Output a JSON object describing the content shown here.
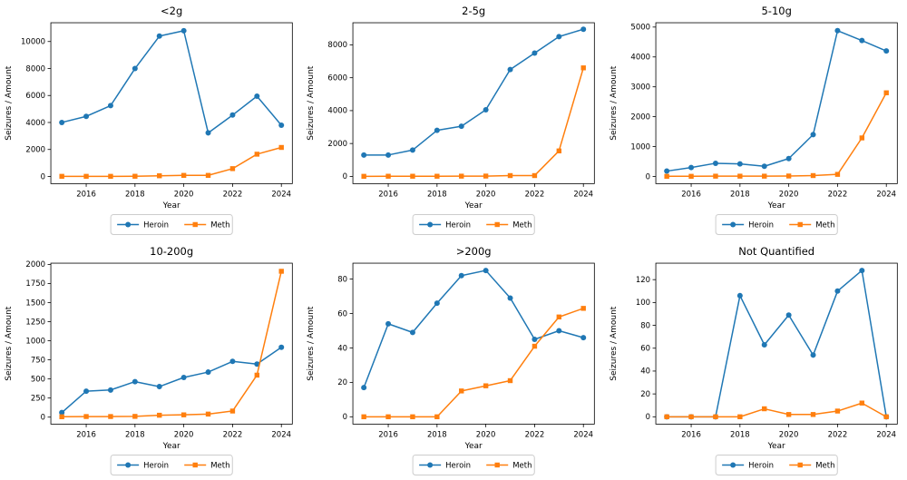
{
  "figure": {
    "background": "#ffffff",
    "heroin_color": "#1f77b4",
    "meth_color": "#ff7f0e",
    "spine_color": "#000000",
    "legend_border_color": "#cccccc"
  },
  "chart_data": [
    {
      "type": "line",
      "title": "<2g",
      "xlabel": "Year",
      "ylabel": "Seizures / Amount",
      "x": [
        2015,
        2016,
        2017,
        2018,
        2019,
        2020,
        2021,
        2022,
        2023,
        2024
      ],
      "xticks": [
        2016,
        2018,
        2020,
        2022,
        2024
      ],
      "yticks": [
        0,
        2000,
        4000,
        6000,
        8000,
        10000
      ],
      "xlim": [
        2014.55,
        2024.45
      ],
      "ylim": [
        -532,
        11392
      ],
      "grid": false,
      "legend": {
        "labels": [
          "Heroin",
          "Meth"
        ],
        "position": "below-center"
      },
      "series": [
        {
          "name": "Heroin",
          "color": "#1f77b4",
          "marker": "circle",
          "values": [
            4000,
            4450,
            5250,
            8000,
            10400,
            10800,
            3230,
            4550,
            5950,
            3800
          ]
        },
        {
          "name": "Meth",
          "color": "#ff7f0e",
          "marker": "square",
          "values": [
            10,
            10,
            10,
            15,
            50,
            80,
            80,
            580,
            1650,
            2150
          ]
        }
      ]
    },
    {
      "type": "line",
      "title": "2-5g",
      "xlabel": "Year",
      "ylabel": "Seizures / Amount",
      "x": [
        2015,
        2016,
        2017,
        2018,
        2019,
        2020,
        2021,
        2022,
        2023,
        2024
      ],
      "xticks": [
        2016,
        2018,
        2020,
        2022,
        2024
      ],
      "yticks": [
        0,
        2000,
        4000,
        6000,
        8000
      ],
      "xlim": [
        2014.55,
        2024.45
      ],
      "ylim": [
        -440,
        9345
      ],
      "grid": false,
      "legend": {
        "labels": [
          "Heroin",
          "Meth"
        ],
        "position": "below-center"
      },
      "series": [
        {
          "name": "Heroin",
          "color": "#1f77b4",
          "marker": "circle",
          "values": [
            1300,
            1300,
            1600,
            2800,
            3050,
            4050,
            6500,
            7500,
            8500,
            8950
          ]
        },
        {
          "name": "Meth",
          "color": "#ff7f0e",
          "marker": "square",
          "values": [
            5,
            10,
            10,
            10,
            15,
            20,
            50,
            50,
            1550,
            6600
          ]
        }
      ]
    },
    {
      "type": "line",
      "title": "5-10g",
      "xlabel": "Year",
      "ylabel": "Seizures / Amount",
      "x": [
        2015,
        2016,
        2017,
        2018,
        2019,
        2020,
        2021,
        2022,
        2023,
        2024
      ],
      "xticks": [
        2016,
        2018,
        2020,
        2022,
        2024
      ],
      "yticks": [
        0,
        1000,
        2000,
        3000,
        4000,
        5000
      ],
      "xlim": [
        2014.55,
        2024.45
      ],
      "ylim": [
        -240,
        5145
      ],
      "grid": false,
      "legend": {
        "labels": [
          "Heroin",
          "Meth"
        ],
        "position": "below-center"
      },
      "series": [
        {
          "name": "Heroin",
          "color": "#1f77b4",
          "marker": "circle",
          "values": [
            180,
            300,
            440,
            420,
            340,
            600,
            1400,
            4880,
            4550,
            4200
          ]
        },
        {
          "name": "Meth",
          "color": "#ff7f0e",
          "marker": "square",
          "values": [
            5,
            5,
            10,
            10,
            10,
            15,
            30,
            70,
            1290,
            2800
          ]
        }
      ]
    },
    {
      "type": "line",
      "title": "10-200g",
      "xlabel": "Year",
      "ylabel": "Seizures / Amount",
      "x": [
        2015,
        2016,
        2017,
        2018,
        2019,
        2020,
        2021,
        2022,
        2023,
        2024
      ],
      "xticks": [
        2016,
        2018,
        2020,
        2022,
        2024
      ],
      "yticks": [
        0,
        250,
        500,
        750,
        1000,
        1250,
        1500,
        1750,
        2000
      ],
      "xlim": [
        2014.55,
        2024.45
      ],
      "ylim": [
        -91,
        2016
      ],
      "grid": false,
      "legend": {
        "labels": [
          "Heroin",
          "Meth"
        ],
        "position": "below-center"
      },
      "series": [
        {
          "name": "Heroin",
          "color": "#1f77b4",
          "marker": "circle",
          "values": [
            60,
            340,
            355,
            465,
            400,
            520,
            590,
            730,
            695,
            915
          ]
        },
        {
          "name": "Meth",
          "color": "#ff7f0e",
          "marker": "square",
          "values": [
            5,
            8,
            8,
            10,
            25,
            30,
            40,
            80,
            550,
            1910
          ]
        }
      ]
    },
    {
      "type": "line",
      "title": ">200g",
      "xlabel": "Year",
      "ylabel": "Seizures / Amount",
      "x": [
        2015,
        2016,
        2017,
        2018,
        2019,
        2020,
        2021,
        2022,
        2023,
        2024
      ],
      "xticks": [
        2016,
        2018,
        2020,
        2022,
        2024
      ],
      "yticks": [
        0,
        20,
        40,
        60,
        80
      ],
      "xlim": [
        2014.55,
        2024.45
      ],
      "ylim": [
        -4.25,
        89.25
      ],
      "grid": false,
      "legend": {
        "labels": [
          "Heroin",
          "Meth"
        ],
        "position": "below-center"
      },
      "series": [
        {
          "name": "Heroin",
          "color": "#1f77b4",
          "marker": "circle",
          "values": [
            17,
            54,
            49,
            66,
            82,
            85,
            69,
            45,
            50,
            46
          ]
        },
        {
          "name": "Meth",
          "color": "#ff7f0e",
          "marker": "square",
          "values": [
            0,
            0,
            0,
            0,
            15,
            18,
            21,
            41,
            58,
            63
          ]
        }
      ]
    },
    {
      "type": "line",
      "title": "Not Quantified",
      "xlabel": "Year",
      "ylabel": "Seizures / Amount",
      "x": [
        2015,
        2016,
        2017,
        2018,
        2019,
        2020,
        2021,
        2022,
        2023,
        2024
      ],
      "xticks": [
        2016,
        2018,
        2020,
        2022,
        2024
      ],
      "yticks": [
        0,
        20,
        40,
        60,
        80,
        100,
        120
      ],
      "xlim": [
        2014.55,
        2024.45
      ],
      "ylim": [
        -6.4,
        134.4
      ],
      "grid": false,
      "legend": {
        "labels": [
          "Heroin",
          "Meth"
        ],
        "position": "below-center"
      },
      "series": [
        {
          "name": "Heroin",
          "color": "#1f77b4",
          "marker": "circle",
          "values": [
            0,
            0,
            0,
            106,
            63,
            89,
            54,
            110,
            128,
            0
          ]
        },
        {
          "name": "Meth",
          "color": "#ff7f0e",
          "marker": "square",
          "values": [
            0,
            0,
            0,
            0,
            7,
            2,
            2,
            5,
            12,
            0
          ]
        }
      ]
    }
  ]
}
